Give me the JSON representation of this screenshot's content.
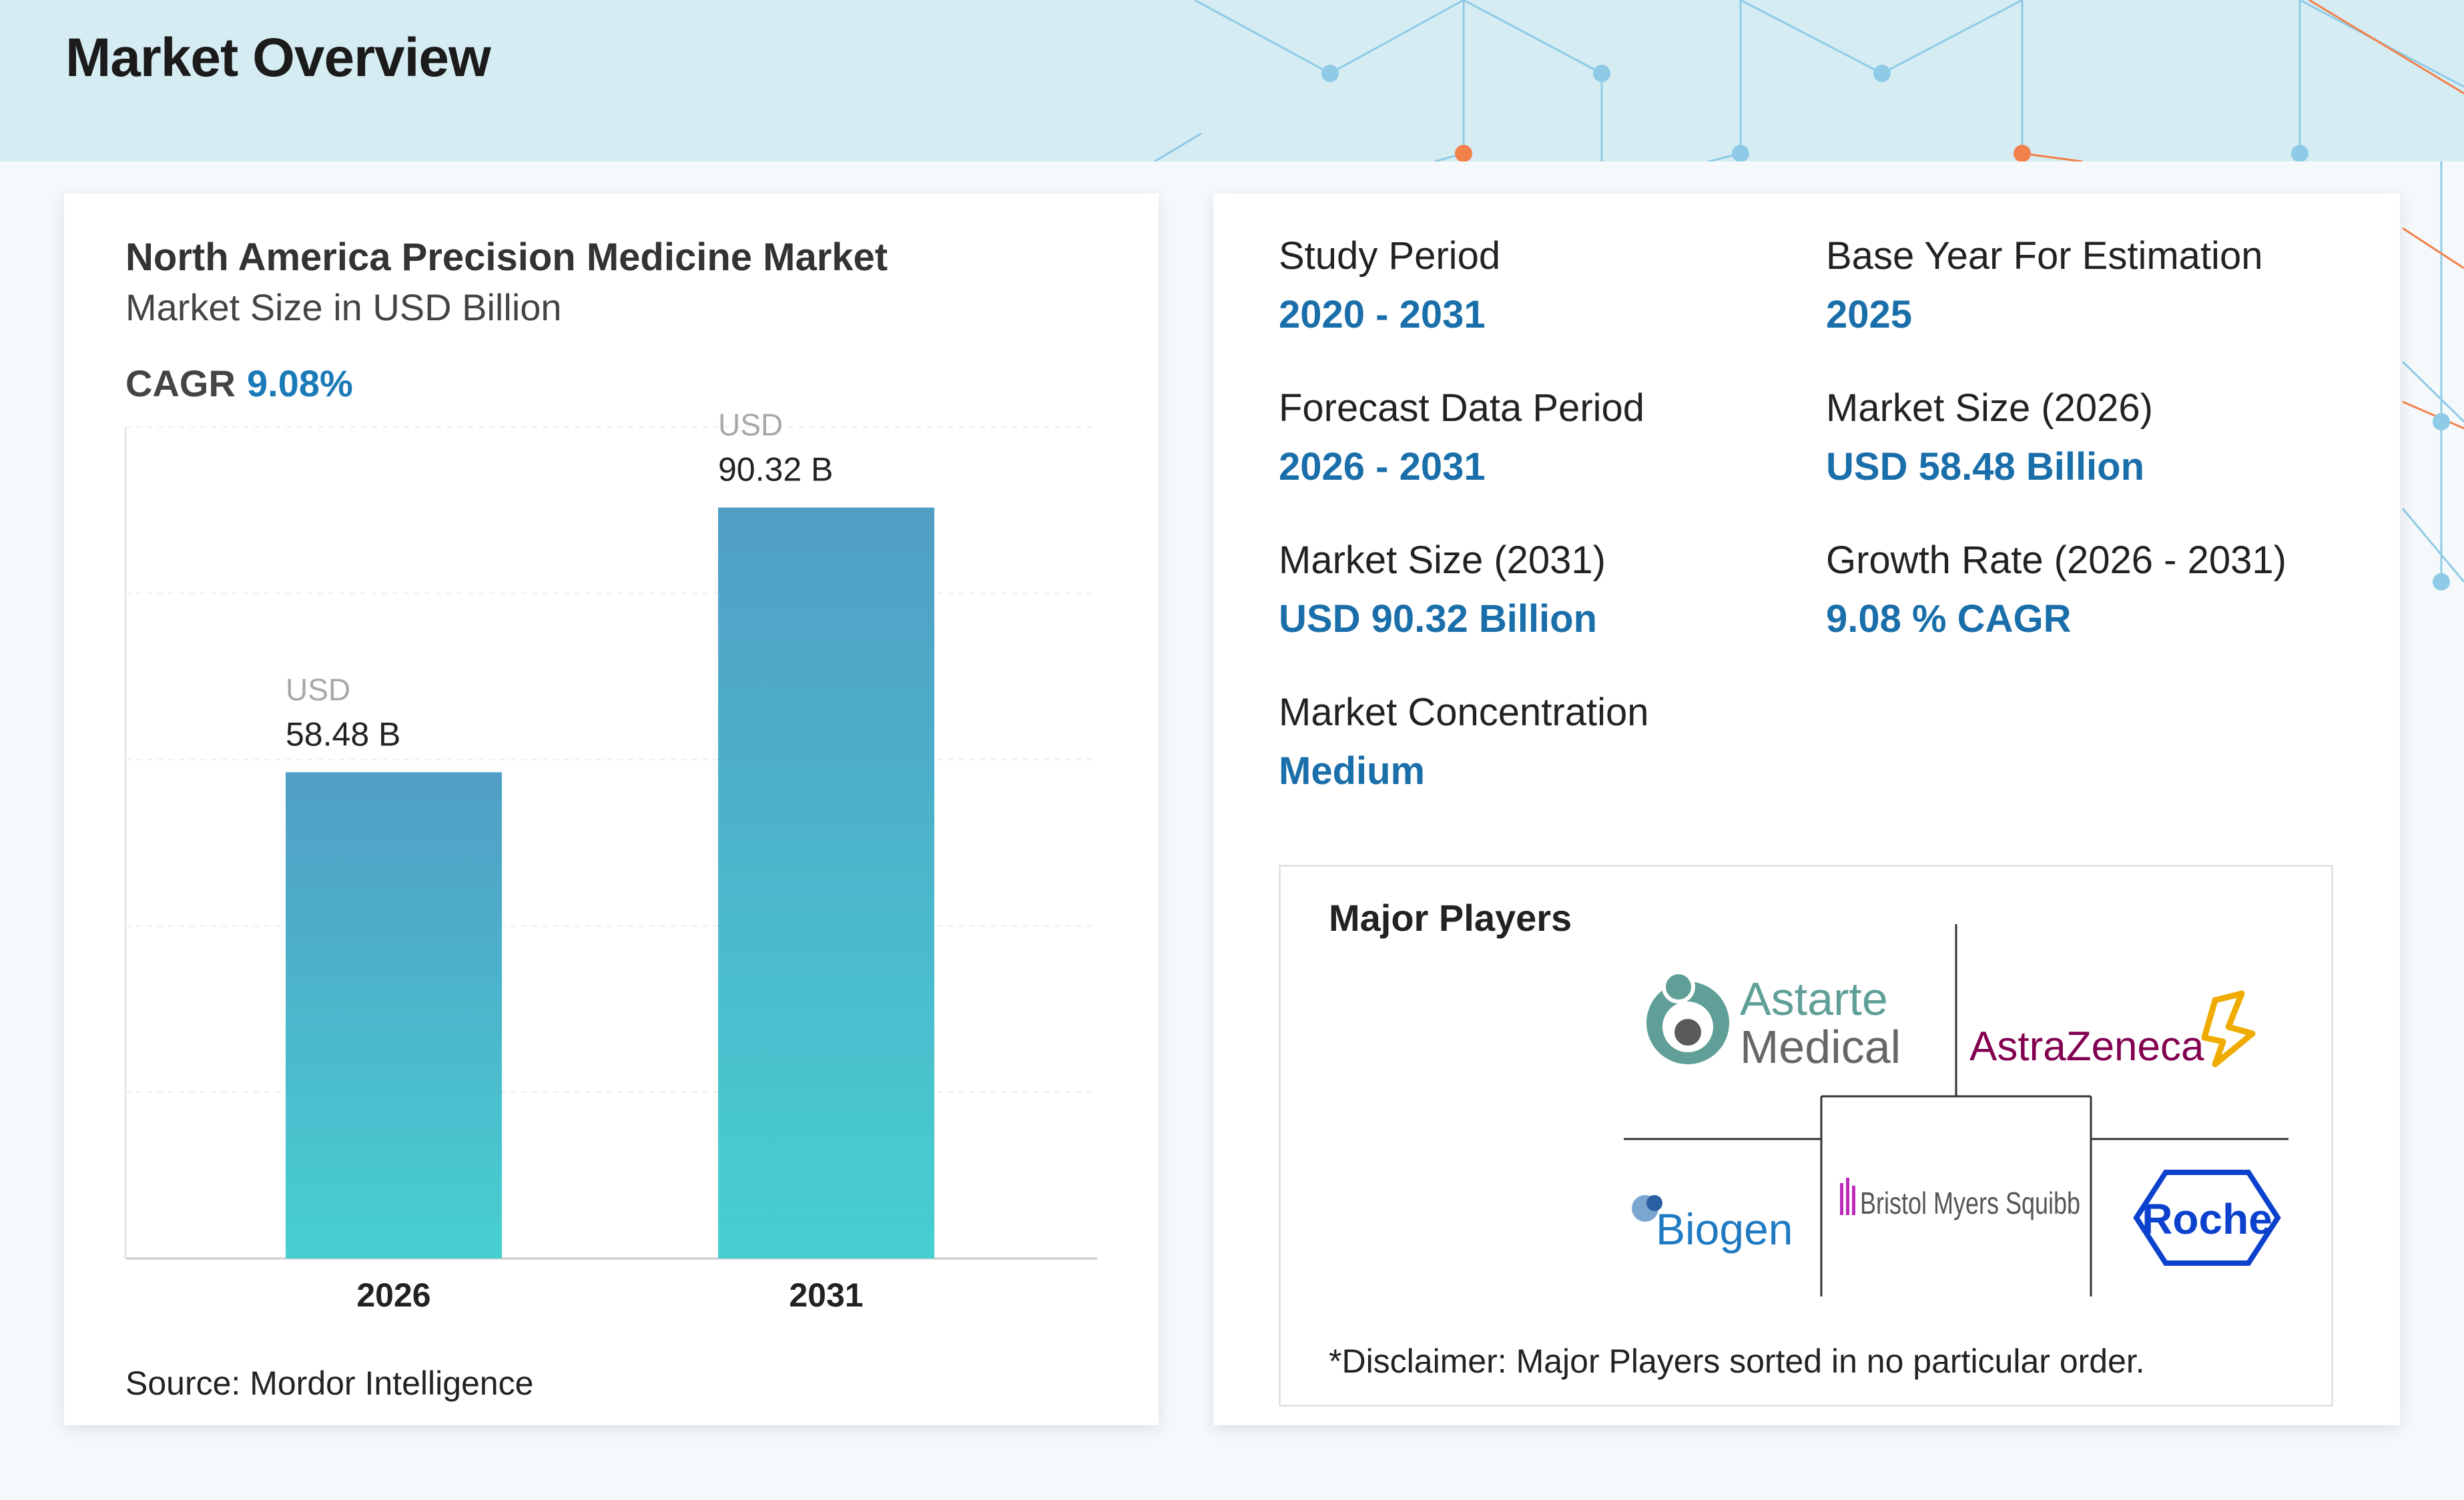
{
  "header": {
    "title": "Market Overview"
  },
  "left_card": {
    "title": "North America Precision Medicine Market",
    "subtitle": "Market Size in USD Billion",
    "cagr_label": "CAGR",
    "cagr_value": "9.08%",
    "source": "Source: Mordor Intelligence"
  },
  "chart_data": {
    "type": "bar",
    "categories": [
      "2026",
      "2031"
    ],
    "values": [
      58.48,
      90.32
    ],
    "value_prefix": "USD",
    "value_labels": [
      "58.48 B",
      "90.32 B"
    ],
    "title": "North America Precision Medicine Market",
    "subtitle": "Market Size in USD Billion",
    "xlabel": "",
    "ylabel": "",
    "ylim": [
      0,
      100
    ],
    "grid": true,
    "colors": {
      "bar_top": "#519ec6",
      "bar_bottom": "#46cfd1"
    }
  },
  "stats": {
    "study_period": {
      "label": "Study Period",
      "value": "2020 - 2031"
    },
    "base_year": {
      "label": "Base Year For Estimation",
      "value": "2025"
    },
    "forecast_period": {
      "label": "Forecast Data Period",
      "value": "2026 - 2031"
    },
    "market_size_2026": {
      "label": "Market Size (2026)",
      "value": "USD 58.48 Billion"
    },
    "market_size_2031": {
      "label": "Market Size (2031)",
      "value": "USD 90.32 Billion"
    },
    "growth_rate": {
      "label": "Growth Rate (2026 - 2031)",
      "value": "9.08 % CAGR"
    },
    "concentration": {
      "label": "Market Concentration",
      "value": "Medium"
    }
  },
  "players": {
    "title": "Major Players",
    "logos": [
      {
        "icon": "astarte-medical-logo",
        "line1": "Astarte",
        "line2": "Medical"
      },
      {
        "icon": "astrazeneca-logo",
        "text": "AstraZeneca"
      },
      {
        "icon": "biogen-logo",
        "text": "Biogen"
      },
      {
        "icon": "bristol-myers-squibb-logo",
        "text": "Bristol Myers Squibb"
      },
      {
        "icon": "roche-logo",
        "text": "Roche"
      }
    ],
    "disclaimer": "*Disclaimer: Major Players sorted in no particular order."
  },
  "colors": {
    "accent": "#1a6faa",
    "header_bg": "#d6ecf3",
    "network_blue": "#8fcbe6",
    "network_orange": "#f2804a"
  }
}
